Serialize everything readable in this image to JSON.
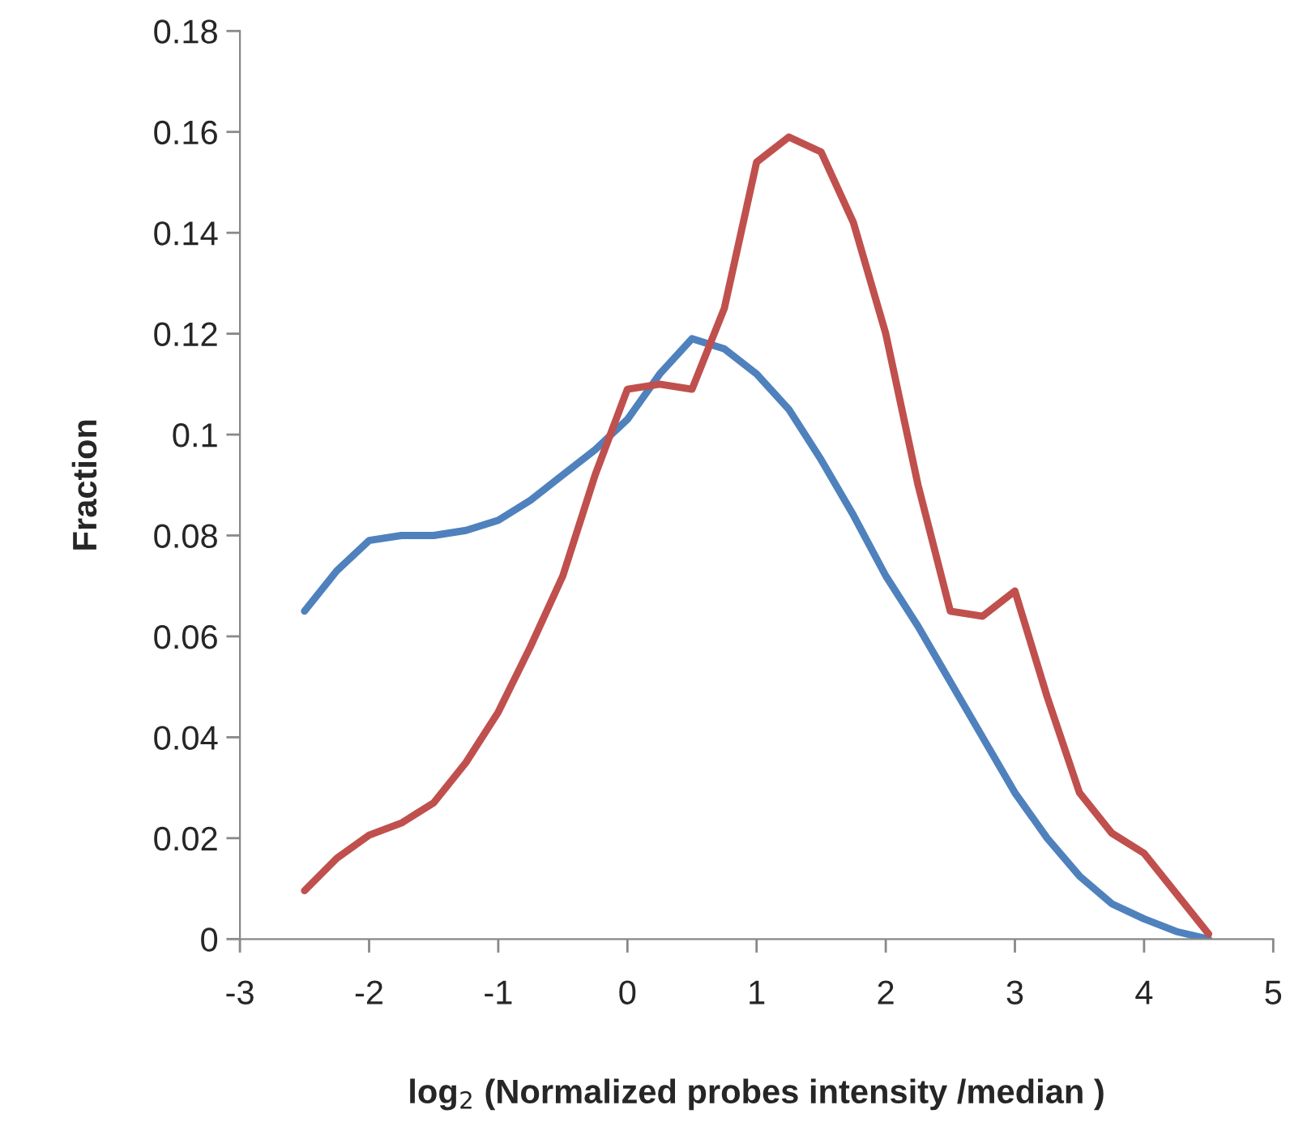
{
  "chart_data": {
    "type": "line",
    "xlabel": "log$_{2}$ (Normalized probes intensity /median )",
    "ylabel": "Fraction",
    "x": [
      -2.5,
      -2.25,
      -2,
      -1.75,
      -1.5,
      -1.25,
      -1,
      -0.75,
      -0.5,
      -0.25,
      0,
      0.25,
      0.5,
      0.75,
      1,
      1.25,
      1.5,
      1.75,
      2,
      2.25,
      2.5,
      2.75,
      3,
      3.25,
      3.5,
      3.75,
      4,
      4.25,
      4.5
    ],
    "series": [
      {
        "color": "#4f81bd",
        "values": [
          0.065,
          0.073,
          0.079,
          0.08,
          0.08,
          0.081,
          0.083,
          0.087,
          0.092,
          0.097,
          0.103,
          0.112,
          0.119,
          0.117,
          0.112,
          0.105,
          0.095,
          0.084,
          0.072,
          0.062,
          0.051,
          0.04,
          0.029,
          0.02,
          0.0125,
          0.007,
          0.004,
          0.0015,
          0.0
        ]
      },
      {
        "color": "#c0504d",
        "values": [
          0.0096,
          0.016,
          0.0206,
          0.023,
          0.027,
          0.035,
          0.045,
          0.058,
          0.072,
          0.092,
          0.109,
          0.11,
          0.109,
          0.125,
          0.154,
          0.159,
          0.156,
          0.142,
          0.12,
          0.09,
          0.065,
          0.064,
          0.069,
          0.048,
          0.029,
          0.021,
          0.017,
          0.009,
          0.001
        ]
      }
    ],
    "xlim": [
      -3,
      5
    ],
    "xticks": [
      -3,
      -2,
      -1,
      0,
      1,
      2,
      3,
      4,
      5
    ],
    "ylim": [
      0,
      0.18
    ],
    "yticks": [
      0,
      0.02,
      0.04,
      0.06,
      0.08,
      0.1,
      0.12,
      0.14,
      0.16,
      0.18
    ],
    "grid": false,
    "legend": false,
    "marker": "none",
    "line_style": "solid"
  }
}
